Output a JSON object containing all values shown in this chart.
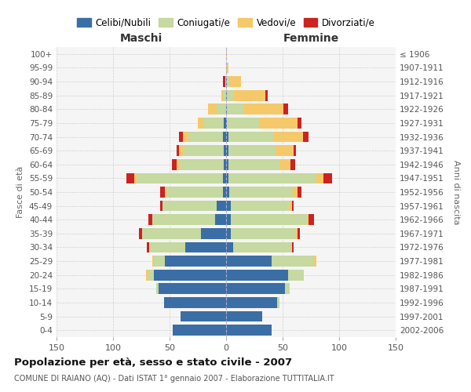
{
  "age_groups": [
    "0-4",
    "5-9",
    "10-14",
    "15-19",
    "20-24",
    "25-29",
    "30-34",
    "35-39",
    "40-44",
    "45-49",
    "50-54",
    "55-59",
    "60-64",
    "65-69",
    "70-74",
    "75-79",
    "80-84",
    "85-89",
    "90-94",
    "95-99",
    "100+"
  ],
  "birth_years": [
    "2002-2006",
    "1997-2001",
    "1992-1996",
    "1987-1991",
    "1982-1986",
    "1977-1981",
    "1972-1976",
    "1967-1971",
    "1962-1966",
    "1957-1961",
    "1952-1956",
    "1947-1951",
    "1942-1946",
    "1937-1941",
    "1932-1936",
    "1927-1931",
    "1922-1926",
    "1917-1921",
    "1912-1916",
    "1907-1911",
    "≤ 1906"
  ],
  "maschi_celibi": [
    47,
    40,
    55,
    60,
    64,
    54,
    36,
    22,
    10,
    8,
    3,
    3,
    2,
    2,
    3,
    2,
    0,
    0,
    0,
    0,
    0
  ],
  "maschi_coniugati": [
    0,
    0,
    0,
    2,
    5,
    10,
    32,
    52,
    55,
    48,
    50,
    76,
    40,
    36,
    30,
    18,
    8,
    2,
    1,
    0,
    0
  ],
  "maschi_vedovi": [
    0,
    0,
    0,
    0,
    2,
    1,
    0,
    0,
    0,
    0,
    1,
    2,
    2,
    4,
    5,
    5,
    8,
    2,
    0,
    0,
    0
  ],
  "maschi_divorziati": [
    0,
    0,
    0,
    0,
    0,
    0,
    2,
    3,
    4,
    2,
    4,
    7,
    4,
    2,
    4,
    0,
    0,
    0,
    2,
    0,
    0
  ],
  "femmine_celibi": [
    40,
    32,
    45,
    52,
    55,
    40,
    6,
    4,
    4,
    4,
    3,
    2,
    2,
    2,
    2,
    1,
    1,
    1,
    1,
    0,
    0
  ],
  "femmine_coniugati": [
    0,
    0,
    2,
    4,
    14,
    38,
    52,
    58,
    68,
    52,
    56,
    78,
    45,
    42,
    40,
    28,
    14,
    6,
    2,
    0,
    0
  ],
  "femmine_vedovi": [
    0,
    0,
    0,
    0,
    0,
    2,
    0,
    1,
    1,
    2,
    4,
    6,
    10,
    16,
    26,
    34,
    36,
    28,
    10,
    2,
    1
  ],
  "femmine_divorziati": [
    0,
    0,
    0,
    0,
    0,
    0,
    2,
    2,
    5,
    2,
    4,
    8,
    4,
    2,
    5,
    4,
    4,
    2,
    0,
    0,
    0
  ],
  "colors": {
    "celibi": "#3a6ea5",
    "coniugati": "#c5d9a0",
    "vedovi": "#f5c96a",
    "divorziati": "#cc2222"
  },
  "title": "Popolazione per età, sesso e stato civile - 2007",
  "subtitle": "COMUNE DI RAIANO (AQ) - Dati ISTAT 1° gennaio 2007 - Elaborazione TUTTITALIA.IT",
  "xlabel_left": "Maschi",
  "xlabel_right": "Femmine",
  "ylabel_left": "Fasce di età",
  "ylabel_right": "Anni di nascita",
  "xlim": 150,
  "legend_labels": [
    "Celibi/Nubili",
    "Coniugati/e",
    "Vedovi/e",
    "Divorziati/e"
  ],
  "bg_color": "#f5f5f5",
  "grid_color": "#cccccc"
}
